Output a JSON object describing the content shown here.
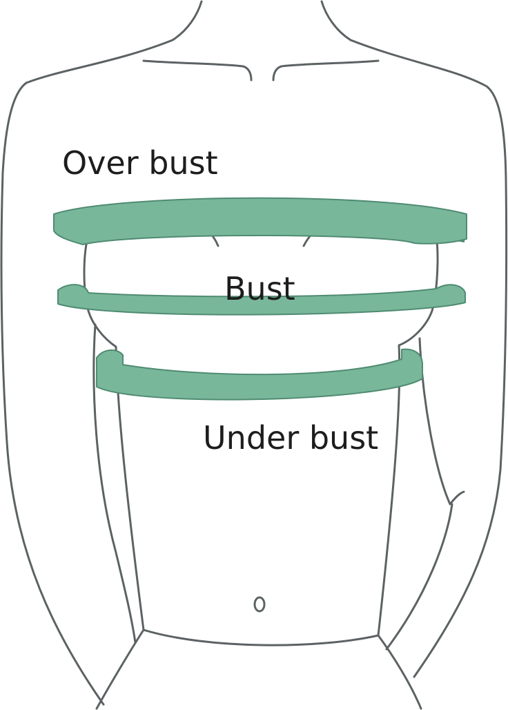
{
  "labels": {
    "over_bust": "Over bust",
    "bust": "Bust",
    "under_bust": "Under bust"
  },
  "colors": {
    "band_fill": "#79b79b",
    "band_back": "#6aa98d",
    "band_stroke": "#4f8b72",
    "outline": "#5c6264",
    "text": "#1d1d1d",
    "background": "#ffffff"
  }
}
